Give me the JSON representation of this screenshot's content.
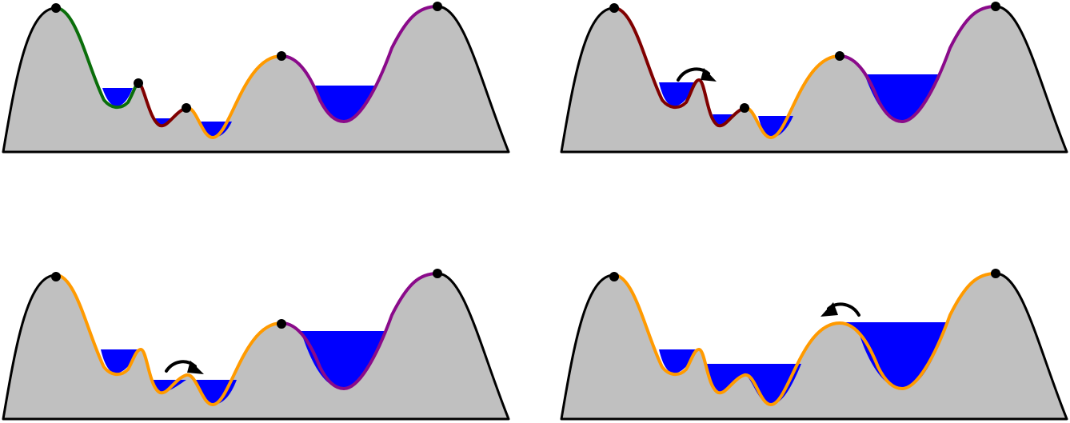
{
  "colors": {
    "terrain": "#c0c0c0",
    "outline": "#000000",
    "water": "#0000ff",
    "green": "#0a6e0a",
    "darkred": "#800000",
    "orange": "#ff9a00",
    "purple": "#8a0a8a",
    "peak": "#000000",
    "arrow": "#000000"
  },
  "panels": [
    {
      "name": "panel-1",
      "water_levels": [
        "level-a",
        "level-b",
        "level-c",
        "level-d"
      ],
      "segments": [
        "green",
        "darkred",
        "orange",
        "purple"
      ],
      "peaks": 5,
      "arrow": "none"
    },
    {
      "name": "panel-2",
      "water_levels": [
        "level-a-raised",
        "level-b",
        "level-c",
        "level-d-raised"
      ],
      "segments": [
        "darkred",
        "orange",
        "purple"
      ],
      "peaks": 4,
      "arrow": "right"
    },
    {
      "name": "panel-3",
      "water_levels": [
        "level-a-raised",
        "level-bc-raised",
        "level-d-raised"
      ],
      "segments": [
        "orange",
        "purple"
      ],
      "peaks": 3,
      "arrow": "right"
    },
    {
      "name": "panel-4",
      "water_levels": [
        "level-a-raised",
        "level-bc-high",
        "level-d-high"
      ],
      "segments": [
        "orange"
      ],
      "peaks": 2,
      "arrow": "left"
    }
  ]
}
